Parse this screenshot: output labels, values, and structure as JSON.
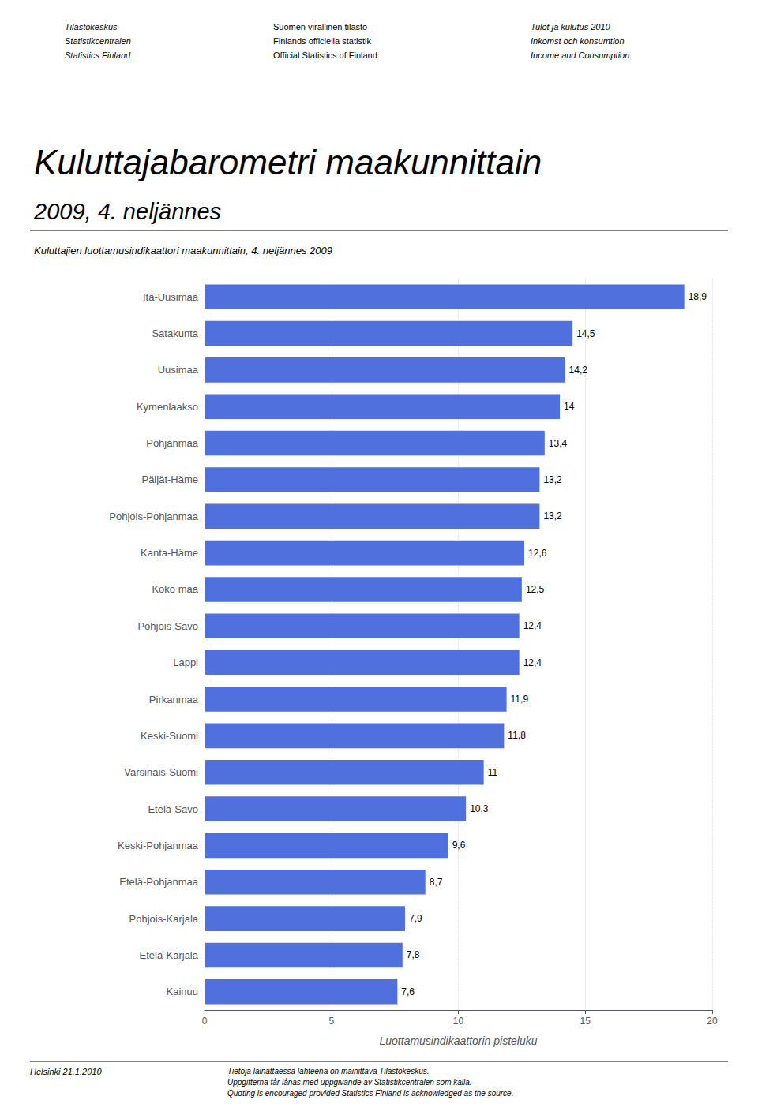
{
  "chart_data": {
    "type": "bar",
    "orientation": "horizontal",
    "title": "Kuluttajabarometri maakunnittain",
    "subtitle": "2009, 4. neljännes",
    "note": "Kuluttajien luottamusindikaattori maakunnittain, 4. neljännes 2009",
    "header": [
      [
        "Tilastokeskus",
        "Statistikcentralen",
        "Statistics Finland"
      ],
      [
        "Suomen virallinen tilasto",
        "Finlands officiella statistik",
        "Official Statistics of Finland"
      ],
      [
        "Tulot ja kulutus 2010",
        "Inkomst och konsumtion",
        "Income and Consumption"
      ]
    ],
    "footer": [
      [
        "Helsinki 21.1.2010"
      ],
      [
        "Tietoja lainattaessa lähteenä on mainittava Tilastokeskus.",
        "Uppgifterna får lånas med uppgivande av Statistikcentralen som källa.",
        "Quoting is encouraged provided Statistics Finland is acknowledged as the source."
      ]
    ],
    "xlabel": "Luottamusindikaattorin pisteluku",
    "xlim": [
      0,
      20
    ],
    "xticks": [
      0,
      5,
      10,
      15,
      20
    ],
    "grid": true,
    "data_labels": true,
    "categories": [
      "Itä-Uusimaa",
      "Satakunta",
      "Uusimaa",
      "Kymenlaakso",
      "Pohjanmaa",
      "Päijät-Häme",
      "Pohjois-Pohjanmaa",
      "Kanta-Häme",
      "Koko maa",
      "Pohjois-Savo",
      "Lappi",
      "Pirkanmaa",
      "Keski-Suomi",
      "Varsinais-Suomi",
      "Etelä-Savo",
      "Keski-Pohjanmaa",
      "Etelä-Pohjanmaa",
      "Pohjois-Karjala",
      "Etelä-Karjala",
      "Kainuu"
    ],
    "values": [
      18.9,
      14.5,
      14.2,
      14.0,
      13.4,
      13.2,
      13.2,
      12.6,
      12.5,
      12.4,
      12.4,
      11.9,
      11.8,
      11.0,
      10.3,
      9.6,
      8.7,
      7.9,
      7.8,
      7.6
    ],
    "value_labels": [
      "18,9",
      "14,5",
      "14,2",
      "14",
      "13,4",
      "13,2",
      "13,2",
      "12,6",
      "12,5",
      "12,4",
      "12,4",
      "11,9",
      "11,8",
      "11",
      "10,3",
      "9,6",
      "8,7",
      "7,9",
      "7,8",
      "7,6"
    ]
  }
}
